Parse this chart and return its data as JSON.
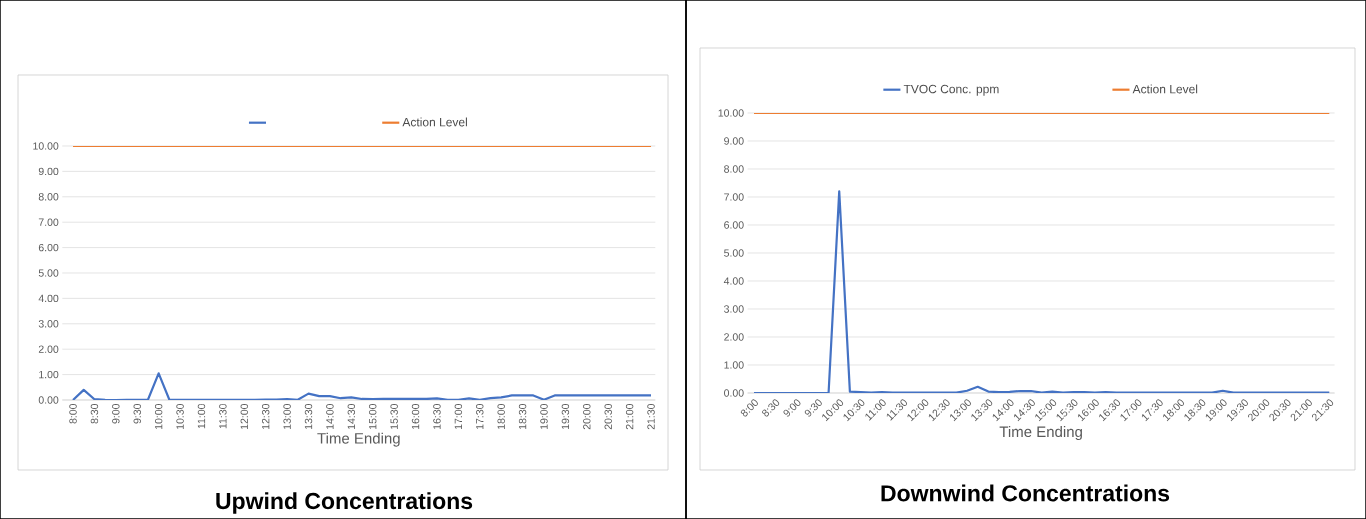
{
  "chart_data": [
    {
      "type": "line",
      "title": "Upwind Concentrations",
      "xlabel": "Time Ending",
      "categories": [
        "8:00",
        null,
        "8:30",
        null,
        "9:00",
        null,
        "9:30",
        null,
        "10:00",
        null,
        "10:30",
        null,
        "11:00",
        null,
        "11:30",
        null,
        "12:00",
        null,
        "12:30",
        null,
        "13:00",
        null,
        "13:30",
        null,
        "14:00",
        null,
        "14:30",
        null,
        "15:00",
        null,
        "15:30",
        null,
        "16:00",
        null,
        "16:30",
        null,
        "17:00",
        null,
        "17:30",
        null,
        "18:00",
        null,
        "18:30",
        null,
        "19:00",
        null,
        "19:30",
        null,
        "20:00",
        null,
        "20:30",
        null,
        "21:00",
        null,
        "21:30"
      ],
      "series": [
        {
          "color": "#4472c4",
          "values": [
            0.0,
            0.4,
            0.03,
            0.01,
            0.0,
            0.01,
            0.01,
            0.01,
            1.05,
            0.01,
            0.01,
            0.01,
            0.01,
            0.01,
            0.01,
            0.01,
            0.01,
            0.01,
            0.02,
            0.02,
            0.03,
            0.01,
            0.25,
            0.15,
            0.15,
            0.07,
            0.1,
            0.04,
            0.03,
            0.04,
            0.04,
            0.04,
            0.04,
            0.04,
            0.06,
            0.01,
            0.01,
            0.06,
            0.01,
            0.07,
            0.1,
            0.18,
            0.18,
            0.18,
            0.01,
            0.18,
            0.18,
            0.18,
            0.18,
            0.18,
            0.18,
            0.18,
            0.18,
            0.18,
            0.18
          ]
        },
        {
          "name": "Action Level",
          "color": "#ed7d31",
          "values": [
            10,
            10,
            10,
            10,
            10,
            10,
            10,
            10,
            10,
            10,
            10,
            10,
            10,
            10,
            10,
            10,
            10,
            10,
            10,
            10,
            10,
            10,
            10,
            10,
            10,
            10,
            10,
            10,
            10,
            10,
            10,
            10,
            10,
            10,
            10,
            10,
            10,
            10,
            10,
            10,
            10,
            10,
            10,
            10,
            10,
            10,
            10,
            10,
            10,
            10,
            10,
            10,
            10,
            10,
            10
          ]
        }
      ],
      "ylim": [
        0,
        10
      ],
      "yticks": [
        {
          "value": 0,
          "label": "0.00"
        },
        {
          "value": 1,
          "label": "1.00"
        },
        {
          "value": 2,
          "label": "2.00"
        },
        {
          "value": 3,
          "label": "3.00"
        },
        {
          "value": 4,
          "label": "4.00"
        },
        {
          "value": 5,
          "label": "5.00"
        },
        {
          "value": 6,
          "label": "6.00"
        },
        {
          "value": 7,
          "label": "7.00"
        },
        {
          "value": 8,
          "label": "8.00"
        },
        {
          "value": 9,
          "label": "9.00"
        },
        {
          "value": 10,
          "label": "10.00"
        }
      ],
      "grid": "y",
      "legend": "top"
    },
    {
      "type": "line",
      "title": "Downwind Concentrations",
      "xlabel": "Time Ending",
      "categories": [
        "8:00",
        null,
        "8:30",
        null,
        "9:00",
        null,
        "9:30",
        null,
        "10:00",
        null,
        "10:30",
        null,
        "11:00",
        null,
        "11:30",
        null,
        "12:00",
        null,
        "12:30",
        null,
        "13:00",
        null,
        "13:30",
        null,
        "14:00",
        null,
        "14:30",
        null,
        "15:00",
        null,
        "15:30",
        null,
        "16:00",
        null,
        "16:30",
        null,
        "17:00",
        null,
        "17:30",
        null,
        "18:00",
        null,
        "18:30",
        null,
        "19:00",
        null,
        "19:30",
        null,
        "20:00",
        null,
        "20:30",
        null,
        "21:00",
        null,
        "21:30"
      ],
      "series": [
        {
          "name": "TVOC Conc. ppm",
          "color": "#4472c4",
          "values": [
            0.0,
            0.0,
            0.0,
            0.0,
            0.0,
            0.0,
            0.0,
            0.0,
            7.2,
            0.05,
            0.03,
            0.01,
            0.03,
            0.01,
            0.01,
            0.01,
            0.01,
            0.01,
            0.01,
            0.01,
            0.08,
            0.22,
            0.05,
            0.03,
            0.04,
            0.07,
            0.07,
            0.01,
            0.05,
            0.01,
            0.03,
            0.03,
            0.01,
            0.03,
            0.01,
            0.01,
            0.01,
            0.01,
            0.01,
            0.01,
            0.01,
            0.01,
            0.01,
            0.01,
            0.08,
            0.01,
            0.01,
            0.01,
            0.01,
            0.01,
            0.01,
            0.01,
            0.01,
            0.01,
            0.01
          ]
        },
        {
          "name": "Action Level",
          "color": "#ed7d31",
          "values": [
            10,
            10,
            10,
            10,
            10,
            10,
            10,
            10,
            10,
            10,
            10,
            10,
            10,
            10,
            10,
            10,
            10,
            10,
            10,
            10,
            10,
            10,
            10,
            10,
            10,
            10,
            10,
            10,
            10,
            10,
            10,
            10,
            10,
            10,
            10,
            10,
            10,
            10,
            10,
            10,
            10,
            10,
            10,
            10,
            10,
            10,
            10,
            10,
            10,
            10,
            10,
            10,
            10,
            10,
            10
          ]
        }
      ],
      "ylim": [
        0,
        10
      ],
      "yticks": [
        {
          "value": 0,
          "label": "0.00"
        },
        {
          "value": 1,
          "label": "1.00"
        },
        {
          "value": 2,
          "label": "2.00"
        },
        {
          "value": 3,
          "label": "3.00"
        },
        {
          "value": 4,
          "label": "4.00"
        },
        {
          "value": 5,
          "label": "5.00"
        },
        {
          "value": 6,
          "label": "6.00"
        },
        {
          "value": 7,
          "label": "7.00"
        },
        {
          "value": 8,
          "label": "8.00"
        },
        {
          "value": 9,
          "label": "9.00"
        },
        {
          "value": 10,
          "label": "10.00"
        }
      ],
      "grid": "y",
      "legend": "top"
    }
  ]
}
